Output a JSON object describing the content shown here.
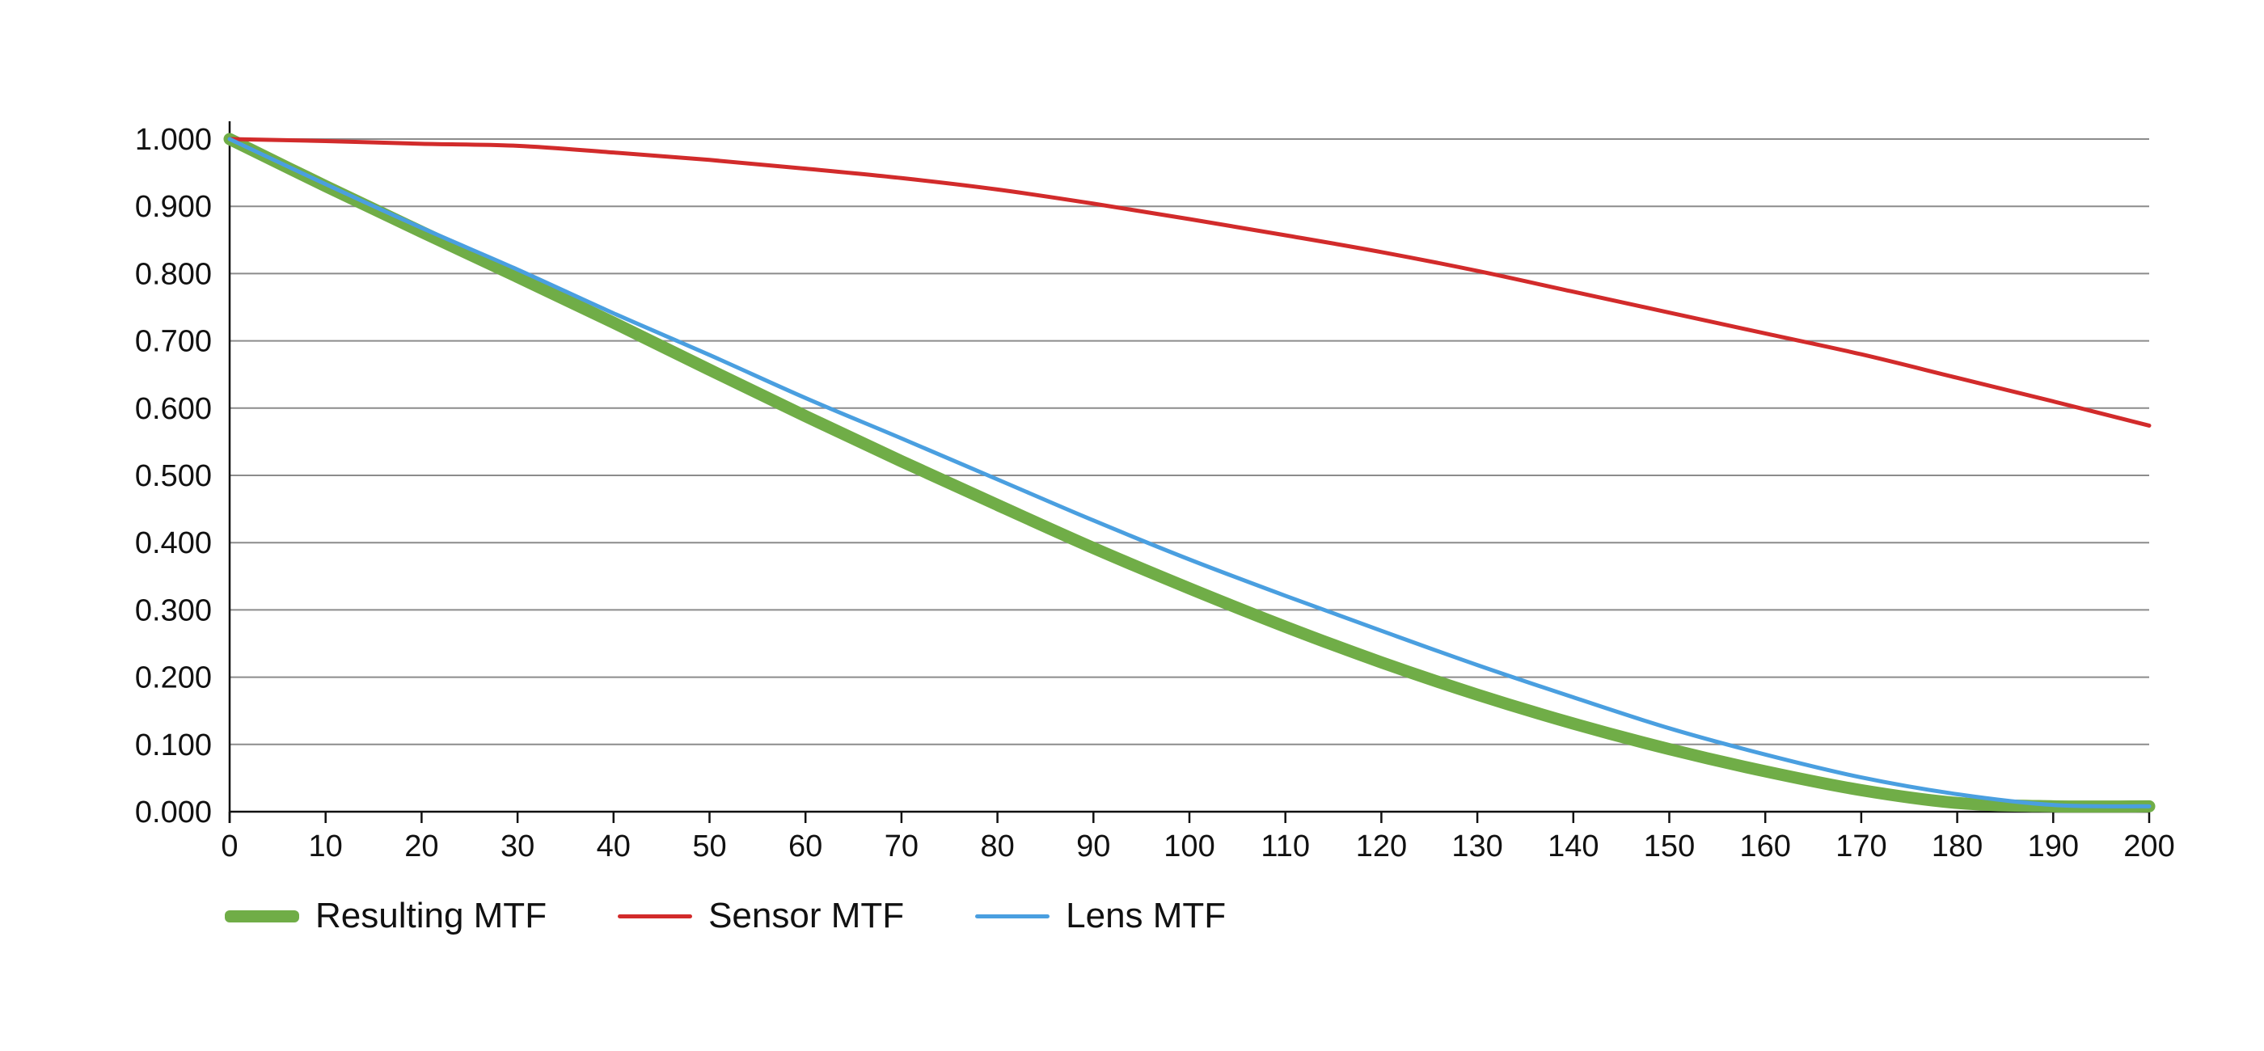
{
  "chart_data": {
    "type": "line",
    "title": "",
    "xlabel": "",
    "ylabel": "",
    "xlim": [
      0,
      200
    ],
    "ylim": [
      0,
      1
    ],
    "x_ticks": [
      "0",
      "10",
      "20",
      "30",
      "40",
      "50",
      "60",
      "70",
      "80",
      "90",
      "100",
      "110",
      "120",
      "130",
      "140",
      "150",
      "160",
      "170",
      "180",
      "190",
      "200"
    ],
    "y_ticks": [
      "0.000",
      "0.100",
      "0.200",
      "0.300",
      "0.400",
      "0.500",
      "0.600",
      "0.700",
      "0.800",
      "0.900",
      "1.000"
    ],
    "grid": true,
    "legend_position": "bottom-left",
    "x": [
      0,
      10,
      20,
      30,
      40,
      50,
      60,
      70,
      80,
      90,
      100,
      110,
      120,
      130,
      140,
      150,
      160,
      170,
      180,
      190,
      200
    ],
    "series": [
      {
        "name": "Resulting MTF",
        "color": "#70AD47",
        "values": [
          1.0,
          0.93,
          0.862,
          0.795,
          0.727,
          0.657,
          0.588,
          0.521,
          0.456,
          0.392,
          0.332,
          0.275,
          0.222,
          0.174,
          0.131,
          0.093,
          0.06,
          0.032,
          0.013,
          0.008,
          0.008
        ]
      },
      {
        "name": "Sensor MTF",
        "color": "#D22B2B",
        "values": [
          1.0,
          0.997,
          0.993,
          0.99,
          0.98,
          0.969,
          0.956,
          0.942,
          0.925,
          0.904,
          0.881,
          0.857,
          0.832,
          0.804,
          0.773,
          0.742,
          0.711,
          0.68,
          0.645,
          0.61,
          0.574
        ]
      },
      {
        "name": "Lens MTF",
        "color": "#4A9FE0",
        "values": [
          1.0,
          0.933,
          0.868,
          0.806,
          0.741,
          0.679,
          0.615,
          0.555,
          0.494,
          0.433,
          0.375,
          0.321,
          0.269,
          0.218,
          0.17,
          0.124,
          0.085,
          0.051,
          0.026,
          0.01,
          0.008
        ]
      }
    ]
  }
}
